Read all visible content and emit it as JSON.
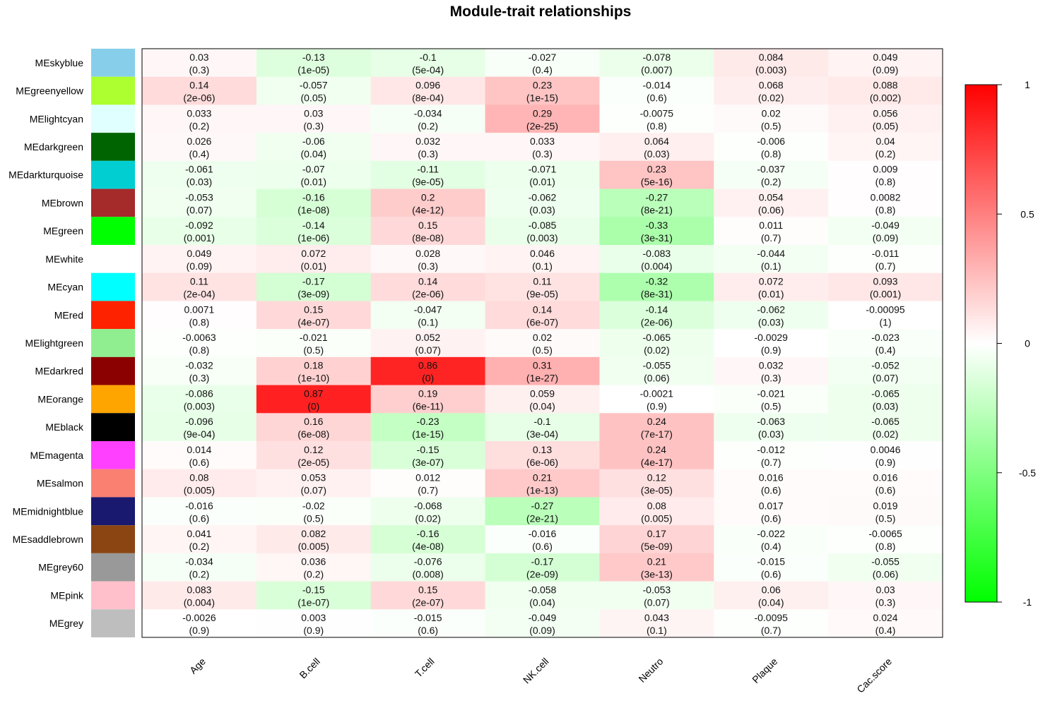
{
  "chart_data": {
    "type": "heatmap",
    "title": "Module-trait relationships",
    "columns": [
      "Age",
      "B.cell",
      "T.cell",
      "NK.cell",
      "Neutro",
      "Plaque",
      "Cac.score"
    ],
    "rows": [
      {
        "label": "MEskyblue",
        "color": "#87CEEB",
        "values": [
          "0.03",
          "-0.13",
          "-0.1",
          "-0.027",
          "-0.078",
          "0.084",
          "0.049"
        ],
        "pvalues": [
          "(0.3)",
          "(1e-05)",
          "(5e-04)",
          "(0.4)",
          "(0.007)",
          "(0.003)",
          "(0.09)"
        ]
      },
      {
        "label": "MEgreenyellow",
        "color": "#ADFF2F",
        "values": [
          "0.14",
          "-0.057",
          "0.096",
          "0.23",
          "-0.014",
          "0.068",
          "0.088"
        ],
        "pvalues": [
          "(2e-06)",
          "(0.05)",
          "(8e-04)",
          "(1e-15)",
          "(0.6)",
          "(0.02)",
          "(0.002)"
        ]
      },
      {
        "label": "MElightcyan",
        "color": "#E0FFFF",
        "values": [
          "0.033",
          "0.03",
          "-0.034",
          "0.29",
          "-0.0075",
          "0.02",
          "0.056"
        ],
        "pvalues": [
          "(0.2)",
          "(0.3)",
          "(0.2)",
          "(2e-25)",
          "(0.8)",
          "(0.5)",
          "(0.05)"
        ]
      },
      {
        "label": "MEdarkgreen",
        "color": "#006400",
        "values": [
          "0.026",
          "-0.06",
          "0.032",
          "0.033",
          "0.064",
          "-0.006",
          "0.04"
        ],
        "pvalues": [
          "(0.4)",
          "(0.04)",
          "(0.3)",
          "(0.3)",
          "(0.03)",
          "(0.8)",
          "(0.2)"
        ]
      },
      {
        "label": "MEdarkturquoise",
        "color": "#00CED1",
        "values": [
          "-0.061",
          "-0.07",
          "-0.11",
          "-0.071",
          "0.23",
          "-0.037",
          "0.009"
        ],
        "pvalues": [
          "(0.03)",
          "(0.01)",
          "(9e-05)",
          "(0.01)",
          "(5e-16)",
          "(0.2)",
          "(0.8)"
        ]
      },
      {
        "label": "MEbrown",
        "color": "#A52A2A",
        "values": [
          "-0.053",
          "-0.16",
          "0.2",
          "-0.062",
          "-0.27",
          "0.054",
          "0.0082"
        ],
        "pvalues": [
          "(0.07)",
          "(1e-08)",
          "(4e-12)",
          "(0.03)",
          "(8e-21)",
          "(0.06)",
          "(0.8)"
        ]
      },
      {
        "label": "MEgreen",
        "color": "#00FF00",
        "values": [
          "-0.092",
          "-0.14",
          "0.15",
          "-0.085",
          "-0.33",
          "0.011",
          "-0.049"
        ],
        "pvalues": [
          "(0.001)",
          "(1e-06)",
          "(8e-08)",
          "(0.003)",
          "(3e-31)",
          "(0.7)",
          "(0.09)"
        ]
      },
      {
        "label": "MEwhite",
        "color": "#FFFFFF",
        "values": [
          "0.049",
          "0.072",
          "0.028",
          "0.046",
          "-0.083",
          "-0.044",
          "-0.011"
        ],
        "pvalues": [
          "(0.09)",
          "(0.01)",
          "(0.3)",
          "(0.1)",
          "(0.004)",
          "(0.1)",
          "(0.7)"
        ]
      },
      {
        "label": "MEcyan",
        "color": "#00FFFF",
        "values": [
          "0.11",
          "-0.17",
          "0.14",
          "0.11",
          "-0.32",
          "0.072",
          "0.093"
        ],
        "pvalues": [
          "(2e-04)",
          "(3e-09)",
          "(2e-06)",
          "(9e-05)",
          "(8e-31)",
          "(0.01)",
          "(0.001)"
        ]
      },
      {
        "label": "MEred",
        "color": "#FF2200",
        "values": [
          "0.0071",
          "0.15",
          "-0.047",
          "0.14",
          "-0.14",
          "-0.062",
          "-0.00095"
        ],
        "pvalues": [
          "(0.8)",
          "(4e-07)",
          "(0.1)",
          "(6e-07)",
          "(2e-06)",
          "(0.03)",
          "(1)"
        ]
      },
      {
        "label": "MElightgreen",
        "color": "#90EE90",
        "values": [
          "-0.0063",
          "-0.021",
          "0.052",
          "0.02",
          "-0.065",
          "-0.0029",
          "-0.023"
        ],
        "pvalues": [
          "(0.8)",
          "(0.5)",
          "(0.07)",
          "(0.5)",
          "(0.02)",
          "(0.9)",
          "(0.4)"
        ]
      },
      {
        "label": "MEdarkred",
        "color": "#8B0000",
        "values": [
          "-0.032",
          "0.18",
          "0.86",
          "0.31",
          "-0.055",
          "0.032",
          "-0.052"
        ],
        "pvalues": [
          "(0.3)",
          "(1e-10)",
          "(0)",
          "(1e-27)",
          "(0.06)",
          "(0.3)",
          "(0.07)"
        ]
      },
      {
        "label": "MEorange",
        "color": "#FFA500",
        "values": [
          "-0.086",
          "0.87",
          "0.19",
          "0.059",
          "-0.0021",
          "-0.021",
          "-0.065"
        ],
        "pvalues": [
          "(0.003)",
          "(0)",
          "(6e-11)",
          "(0.04)",
          "(0.9)",
          "(0.5)",
          "(0.03)"
        ]
      },
      {
        "label": "MEblack",
        "color": "#000000",
        "values": [
          "-0.096",
          "0.16",
          "-0.23",
          "-0.1",
          "0.24",
          "-0.063",
          "-0.065"
        ],
        "pvalues": [
          "(9e-04)",
          "(6e-08)",
          "(1e-15)",
          "(3e-04)",
          "(7e-17)",
          "(0.03)",
          "(0.02)"
        ]
      },
      {
        "label": "MEmagenta",
        "color": "#FF40FF",
        "values": [
          "0.014",
          "0.12",
          "-0.15",
          "0.13",
          "0.24",
          "-0.012",
          "0.0046"
        ],
        "pvalues": [
          "(0.6)",
          "(2e-05)",
          "(3e-07)",
          "(6e-06)",
          "(4e-17)",
          "(0.7)",
          "(0.9)"
        ]
      },
      {
        "label": "MEsalmon",
        "color": "#FA8072",
        "values": [
          "0.08",
          "0.053",
          "0.012",
          "0.21",
          "0.12",
          "0.016",
          "0.016"
        ],
        "pvalues": [
          "(0.005)",
          "(0.07)",
          "(0.7)",
          "(1e-13)",
          "(3e-05)",
          "(0.6)",
          "(0.6)"
        ]
      },
      {
        "label": "MEmidnightblue",
        "color": "#191970",
        "values": [
          "-0.016",
          "-0.02",
          "-0.068",
          "-0.27",
          "0.08",
          "0.017",
          "0.019"
        ],
        "pvalues": [
          "(0.6)",
          "(0.5)",
          "(0.02)",
          "(2e-21)",
          "(0.005)",
          "(0.6)",
          "(0.5)"
        ]
      },
      {
        "label": "MEsaddlebrown",
        "color": "#8B4513",
        "values": [
          "0.041",
          "0.082",
          "-0.16",
          "-0.016",
          "0.17",
          "-0.022",
          "-0.0065"
        ],
        "pvalues": [
          "(0.2)",
          "(0.005)",
          "(4e-08)",
          "(0.6)",
          "(5e-09)",
          "(0.4)",
          "(0.8)"
        ]
      },
      {
        "label": "MEgrey60",
        "color": "#999999",
        "values": [
          "-0.034",
          "0.036",
          "-0.076",
          "-0.17",
          "0.21",
          "-0.015",
          "-0.055"
        ],
        "pvalues": [
          "(0.2)",
          "(0.2)",
          "(0.008)",
          "(2e-09)",
          "(3e-13)",
          "(0.6)",
          "(0.06)"
        ]
      },
      {
        "label": "MEpink",
        "color": "#FFC0CB",
        "values": [
          "0.083",
          "-0.15",
          "0.15",
          "-0.058",
          "-0.053",
          "0.06",
          "0.03"
        ],
        "pvalues": [
          "(0.004)",
          "(1e-07)",
          "(2e-07)",
          "(0.04)",
          "(0.07)",
          "(0.04)",
          "(0.3)"
        ]
      },
      {
        "label": "MEgrey",
        "color": "#BEBEBE",
        "values": [
          "-0.0026",
          "0.003",
          "-0.015",
          "-0.049",
          "0.043",
          "-0.0095",
          "0.024"
        ],
        "pvalues": [
          "(0.9)",
          "(0.9)",
          "(0.6)",
          "(0.09)",
          "(0.1)",
          "(0.7)",
          "(0.4)"
        ]
      }
    ],
    "colorbar": {
      "range": [
        -1,
        1
      ],
      "ticks": [
        1,
        0.5,
        0,
        -0.5,
        -1
      ],
      "tick_labels": [
        "1",
        "0.5",
        "0",
        "-0.5",
        "-1"
      ],
      "low_color": "#00FF00",
      "mid_color": "#FFFFFF",
      "high_color": "#FF0000"
    }
  }
}
